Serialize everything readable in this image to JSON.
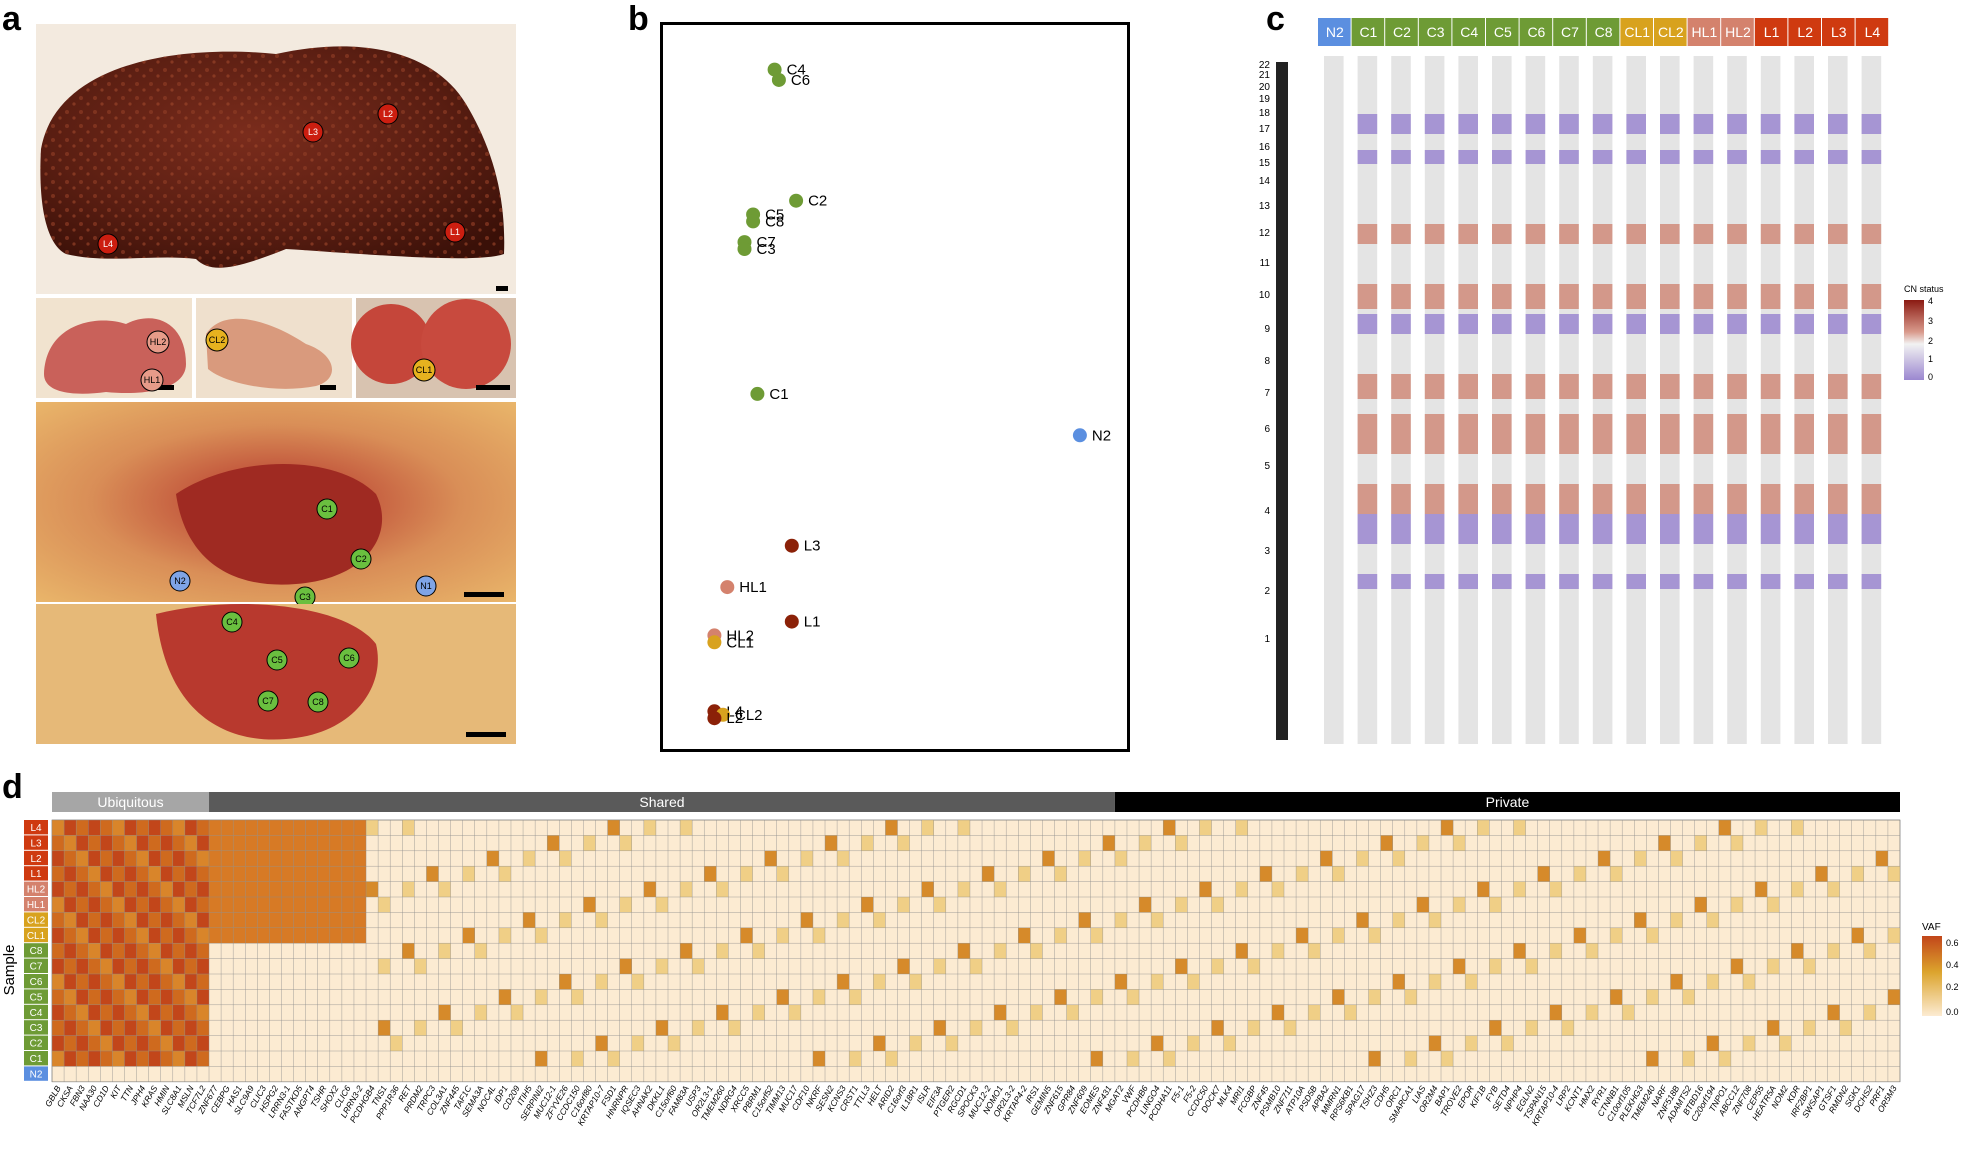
{
  "panels": {
    "a": "a",
    "b": "b",
    "c": "c",
    "d": "d"
  },
  "panel_a": {
    "liver_markers": [
      "L1",
      "L2",
      "L3",
      "L4"
    ],
    "sub_markers": [
      "HL1",
      "HL2",
      "CL1",
      "CL2"
    ],
    "colon_markers": [
      "C1",
      "C2",
      "C3",
      "C4",
      "C5",
      "C6",
      "C7",
      "C8",
      "N1",
      "N2"
    ],
    "colors": {
      "liver": "#cc1e10",
      "colon": "#6abf3f",
      "normal": "#7fa4e6",
      "hl": "#e79b89",
      "cl": "#e6b21f"
    }
  },
  "panel_b": {
    "points": [
      {
        "label": "C4",
        "x": 0.22,
        "y": 0.04,
        "group": "colon"
      },
      {
        "label": "C6",
        "x": 0.23,
        "y": 0.055,
        "group": "colon"
      },
      {
        "label": "C2",
        "x": 0.27,
        "y": 0.23,
        "group": "colon"
      },
      {
        "label": "C5",
        "x": 0.17,
        "y": 0.25,
        "group": "colon"
      },
      {
        "label": "C8",
        "x": 0.17,
        "y": 0.26,
        "group": "colon"
      },
      {
        "label": "C7",
        "x": 0.15,
        "y": 0.29,
        "group": "colon"
      },
      {
        "label": "C3",
        "x": 0.15,
        "y": 0.3,
        "group": "colon"
      },
      {
        "label": "C1",
        "x": 0.18,
        "y": 0.51,
        "group": "colon"
      },
      {
        "label": "N2",
        "x": 0.93,
        "y": 0.57,
        "group": "normal"
      },
      {
        "label": "L3",
        "x": 0.26,
        "y": 0.73,
        "group": "liver"
      },
      {
        "label": "HL1",
        "x": 0.11,
        "y": 0.79,
        "group": "hl"
      },
      {
        "label": "L1",
        "x": 0.26,
        "y": 0.84,
        "group": "liver"
      },
      {
        "label": "HL2",
        "x": 0.08,
        "y": 0.86,
        "group": "hl"
      },
      {
        "label": "CL1",
        "x": 0.08,
        "y": 0.87,
        "group": "cl"
      },
      {
        "label": "L4",
        "x": 0.08,
        "y": 0.97,
        "group": "liver"
      },
      {
        "label": "CL2",
        "x": 0.1,
        "y": 0.975,
        "group": "cl"
      },
      {
        "label": "L2",
        "x": 0.08,
        "y": 0.98,
        "group": "liver"
      }
    ]
  },
  "panel_c": {
    "samples": [
      {
        "label": "N2",
        "color": "#5b8fe0"
      },
      {
        "label": "C1",
        "color": "#6e9b35"
      },
      {
        "label": "C2",
        "color": "#6e9b35"
      },
      {
        "label": "C3",
        "color": "#6e9b35"
      },
      {
        "label": "C4",
        "color": "#6e9b35"
      },
      {
        "label": "C5",
        "color": "#6e9b35"
      },
      {
        "label": "C6",
        "color": "#6e9b35"
      },
      {
        "label": "C7",
        "color": "#6e9b35"
      },
      {
        "label": "C8",
        "color": "#6e9b35"
      },
      {
        "label": "CL1",
        "color": "#d8a21e"
      },
      {
        "label": "CL2",
        "color": "#d8a21e"
      },
      {
        "label": "HL1",
        "color": "#d4826d"
      },
      {
        "label": "HL2",
        "color": "#d4826d"
      },
      {
        "label": "L1",
        "color": "#cf3a10"
      },
      {
        "label": "L2",
        "color": "#cf3a10"
      },
      {
        "label": "L3",
        "color": "#cf3a10"
      },
      {
        "label": "L4",
        "color": "#cf3a10"
      }
    ],
    "chromosomes": [
      "1",
      "2",
      "3",
      "4",
      "5",
      "6",
      "7",
      "8",
      "9",
      "10",
      "11",
      "12",
      "13",
      "14",
      "15",
      "16",
      "17",
      "18",
      "19",
      "20",
      "21",
      "22"
    ],
    "legend_title": "CN status",
    "legend_ticks": [
      "4",
      "3",
      "2",
      "1",
      "0"
    ]
  },
  "panel_d": {
    "categories": [
      {
        "label": "Ubiquitous",
        "color": "#a6a6a6"
      },
      {
        "label": "Shared",
        "color": "#5a5a5a"
      },
      {
        "label": "Private",
        "color": "#000000"
      }
    ],
    "ylabel": "Sample",
    "rows": [
      {
        "label": "L4",
        "color": "#cf3a10"
      },
      {
        "label": "L3",
        "color": "#cf3a10"
      },
      {
        "label": "L2",
        "color": "#cf3a10"
      },
      {
        "label": "L1",
        "color": "#cf3a10"
      },
      {
        "label": "HL2",
        "color": "#d4826d"
      },
      {
        "label": "HL1",
        "color": "#d4826d"
      },
      {
        "label": "CL2",
        "color": "#d8a21e"
      },
      {
        "label": "CL1",
        "color": "#d8a21e"
      },
      {
        "label": "C8",
        "color": "#6e9b35"
      },
      {
        "label": "C7",
        "color": "#6e9b35"
      },
      {
        "label": "C6",
        "color": "#6e9b35"
      },
      {
        "label": "C5",
        "color": "#6e9b35"
      },
      {
        "label": "C4",
        "color": "#6e9b35"
      },
      {
        "label": "C3",
        "color": "#6e9b35"
      },
      {
        "label": "C2",
        "color": "#6e9b35"
      },
      {
        "label": "C1",
        "color": "#6e9b35"
      },
      {
        "label": "N2",
        "color": "#5b8fe0"
      }
    ],
    "genes": [
      "GBLB",
      "CKSA",
      "FBN3",
      "NAA30",
      "CD1D",
      "KIT",
      "TTN",
      "JPH4",
      "KRAS",
      "HMIN",
      "SLC8A1",
      "MSLN",
      "TCF7L2",
      "ZNF677",
      "CEBPG",
      "HAS1",
      "SLC9A9",
      "CLIC3",
      "HSPG2",
      "LRRN3-1",
      "FASTKD5",
      "ANGPT4",
      "TSHR",
      "SHOX2",
      "CLIC6",
      "LRRN3-2",
      "PCDHGB4",
      "TNS1",
      "PPP1R36",
      "RET",
      "PRDM2",
      "TRPC3",
      "COL3A1",
      "ZNF445",
      "TAF1C",
      "SEMA3A",
      "NOC4L",
      "IDP1",
      "CD209",
      "ITIH5",
      "SERPINI2",
      "MUC12-1",
      "ZFYVE26",
      "CCDC150",
      "C16orf80",
      "KRTAP10-7",
      "FSD1",
      "HNRNPR",
      "IQSEC3",
      "AHNAK2",
      "DKKL1",
      "C15orf60",
      "FAM83A",
      "USP3",
      "OR2L3-1",
      "TMEM260",
      "NDRG4",
      "XRCC5",
      "PBRM1",
      "C15orf52",
      "TIMM13",
      "MUC17",
      "CDF10",
      "NKRF",
      "SESN2",
      "KCNS3",
      "CRST1",
      "TTLL3",
      "HELT",
      "ARID2",
      "C16orf3",
      "IL18R1",
      "ISLR",
      "EIF3A",
      "PTGER2",
      "RGCD1",
      "SPOCK3",
      "MUC12-2",
      "NOMO1",
      "OR2L3-2",
      "KRTAP4-2",
      "IRS1",
      "GEMIN5",
      "ZNF615",
      "GPR84",
      "ZNF609",
      "EOMES",
      "ZNF431",
      "MGAT2",
      "VWF",
      "PCDHB6",
      "LINGO4",
      "PCDHA11",
      "F5-1",
      "F5-2",
      "CCDC50",
      "DOCK7",
      "MLK4",
      "MRI1",
      "FCGBP",
      "ZNF45",
      "PSMB10",
      "ZNF711",
      "ATP10A",
      "PSD5B",
      "APBA2",
      "MMRN1",
      "RPS6KB1",
      "SPAG17",
      "TSHZ3",
      "CDH5",
      "ORC1",
      "SMARCA1",
      "LIAS",
      "OR2M4",
      "BAP1",
      "TROVE2",
      "EPOR",
      "KIF1B",
      "FYB",
      "SETD4",
      "NPHP4",
      "EGLN2",
      "TSPAN15",
      "KRTAP10-4",
      "LRP2",
      "KCNT1",
      "HMX2",
      "RYR1",
      "CTNNB1",
      "C10orf105",
      "PLEKHG3",
      "TMEM240",
      "NARF",
      "ZNF518B",
      "ADAMTS2",
      "BTBD16",
      "C20orf194",
      "TNPO1",
      "ABCC12",
      "ZNF708",
      "CEP55",
      "HEATR5A",
      "NOM2",
      "KDR",
      "IRF2BP1",
      "SWSAP1",
      "GTSF1",
      "RMDN2",
      "SGK1",
      "DCHS2",
      "PRF1",
      "OR5M3"
    ],
    "legend_title": "VAF",
    "legend_ticks": [
      "0.6",
      "0.4",
      "0.2",
      "0.0"
    ]
  }
}
